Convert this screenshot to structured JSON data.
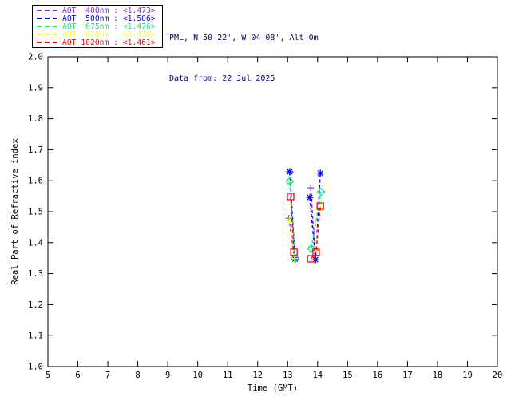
{
  "header": {
    "station": "PML, N 50 22', W 04 08', Alt 0m",
    "date": "Data from: 22 Jul 2025"
  },
  "legend": {
    "items": [
      {
        "id": "aot-400nm",
        "label": "AOT  400nm : <1.473>",
        "color": "#8A2BE2"
      },
      {
        "id": "aot-500nm",
        "label": "AOT  500nm : <1.506>",
        "color": "#0000FF"
      },
      {
        "id": "aot-675nm",
        "label": "AOT  675nm : <1.476>",
        "color": "#00EE76"
      },
      {
        "id": "aot-870nm",
        "label": "AOT  870nm : <1.439>",
        "color": "#FFFF00"
      },
      {
        "id": "aot-1020nm",
        "label": "AOT 1020nm : <1.461>",
        "color": "#FF0000"
      }
    ]
  },
  "chart_data": {
    "type": "line",
    "title": "",
    "xlabel": "Time (GMT)",
    "ylabel": "Real Part of Refractive index",
    "xlim": [
      5,
      20
    ],
    "ylim": [
      1.0,
      2.0
    ],
    "x_tick_step": 1,
    "y_tick_step": 0.1,
    "grid": false,
    "legend_position": "top-left-outside",
    "axis_color": "#000000",
    "series": [
      {
        "name": "AOT 400nm",
        "id": "aot-400nm",
        "retrieved_value": "<1.473>",
        "color": "#8A2BE2",
        "marker": "plus",
        "linestyle": "dashed",
        "segments": [
          [
            [
              13.04,
              1.479
            ],
            [
              13.23,
              1.348
            ]
          ],
          [
            [
              13.77,
              1.577
            ],
            [
              13.91,
              1.376
            ]
          ]
        ]
      },
      {
        "name": "AOT 500nm",
        "id": "aot-500nm",
        "retrieved_value": "<1.506>",
        "color": "#0000FF",
        "marker": "asterisk",
        "linestyle": "dashed",
        "segments": [
          [
            [
              13.07,
              1.629
            ],
            [
              13.25,
              1.347
            ]
          ],
          [
            [
              13.74,
              1.546
            ],
            [
              13.93,
              1.345
            ],
            [
              14.09,
              1.624
            ]
          ]
        ]
      },
      {
        "name": "AOT 675nm",
        "id": "aot-675nm",
        "retrieved_value": "<1.476>",
        "color": "#00EE76",
        "marker": "diamond",
        "linestyle": "dashed",
        "segments": [
          [
            [
              13.07,
              1.598
            ],
            [
              13.25,
              1.351
            ]
          ],
          [
            [
              13.79,
              1.381
            ],
            [
              14.11,
              1.564
            ]
          ]
        ]
      },
      {
        "name": "AOT 870nm",
        "id": "aot-870nm",
        "retrieved_value": "<1.439>",
        "color": "#FFFF00",
        "marker": "plus",
        "linestyle": "dashed",
        "segments": [
          [
            [
              13.05,
              1.472
            ],
            [
              13.23,
              1.349
            ]
          ],
          [
            [
              13.94,
              1.378
            ],
            [
              14.09,
              1.513
            ]
          ]
        ]
      },
      {
        "name": "AOT 1020nm",
        "id": "aot-1020nm",
        "retrieved_value": "<1.461>",
        "color": "#FF0000",
        "marker": "square",
        "linestyle": "dashed",
        "segments": [
          [
            [
              13.1,
              1.549
            ],
            [
              13.21,
              1.369
            ]
          ],
          [
            [
              13.77,
              1.348
            ],
            [
              13.95,
              1.369
            ],
            [
              14.09,
              1.518
            ]
          ]
        ]
      }
    ]
  }
}
